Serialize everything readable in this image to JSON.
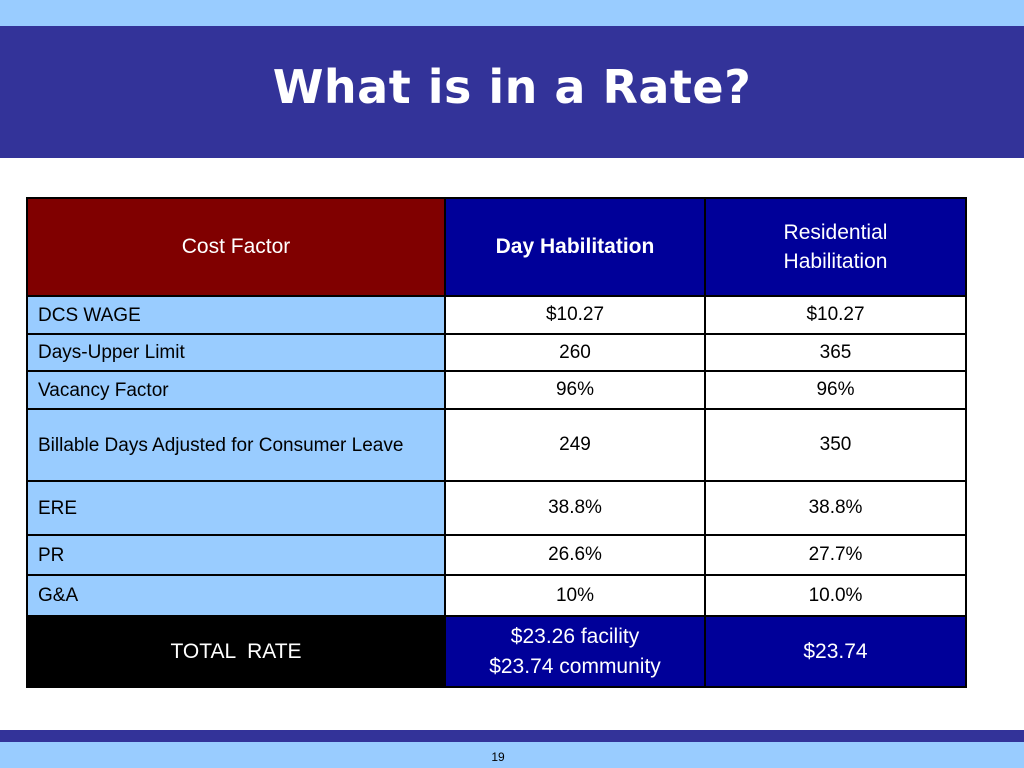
{
  "slide": {
    "title": "What is in a Rate?",
    "page_number": "19"
  },
  "table": {
    "headers": {
      "cost_factor": "Cost Factor",
      "day_habilitation": "Day Habilitation",
      "residential_habilitation": [
        "Residential",
        "Habilitation"
      ]
    },
    "rows": [
      {
        "factor": "DCS WAGE",
        "day": "$10.27",
        "residential": "$10.27"
      },
      {
        "factor": "Days-Upper Limit",
        "day": "260",
        "residential": "365"
      },
      {
        "factor": "Vacancy Factor",
        "day": "96%",
        "residential": "96%"
      },
      {
        "factor": "Billable Days Adjusted for Consumer Leave",
        "day": "249",
        "residential": "350"
      },
      {
        "factor": "ERE",
        "day": "38.8%",
        "residential": "38.8%"
      },
      {
        "factor": "PR",
        "day": "26.6%",
        "residential": "27.7%"
      },
      {
        "factor": "G&A",
        "day": "10%",
        "residential": "10.0%"
      }
    ],
    "total": {
      "label": "TOTAL  RATE",
      "day": [
        "$23.26 facility",
        "$23.74 community"
      ],
      "residential": "$23.74"
    }
  },
  "colors": {
    "title_bar": "#333399",
    "light_blue": "#99ccff",
    "header_maroon": "#800000",
    "header_navy": "#000099"
  }
}
